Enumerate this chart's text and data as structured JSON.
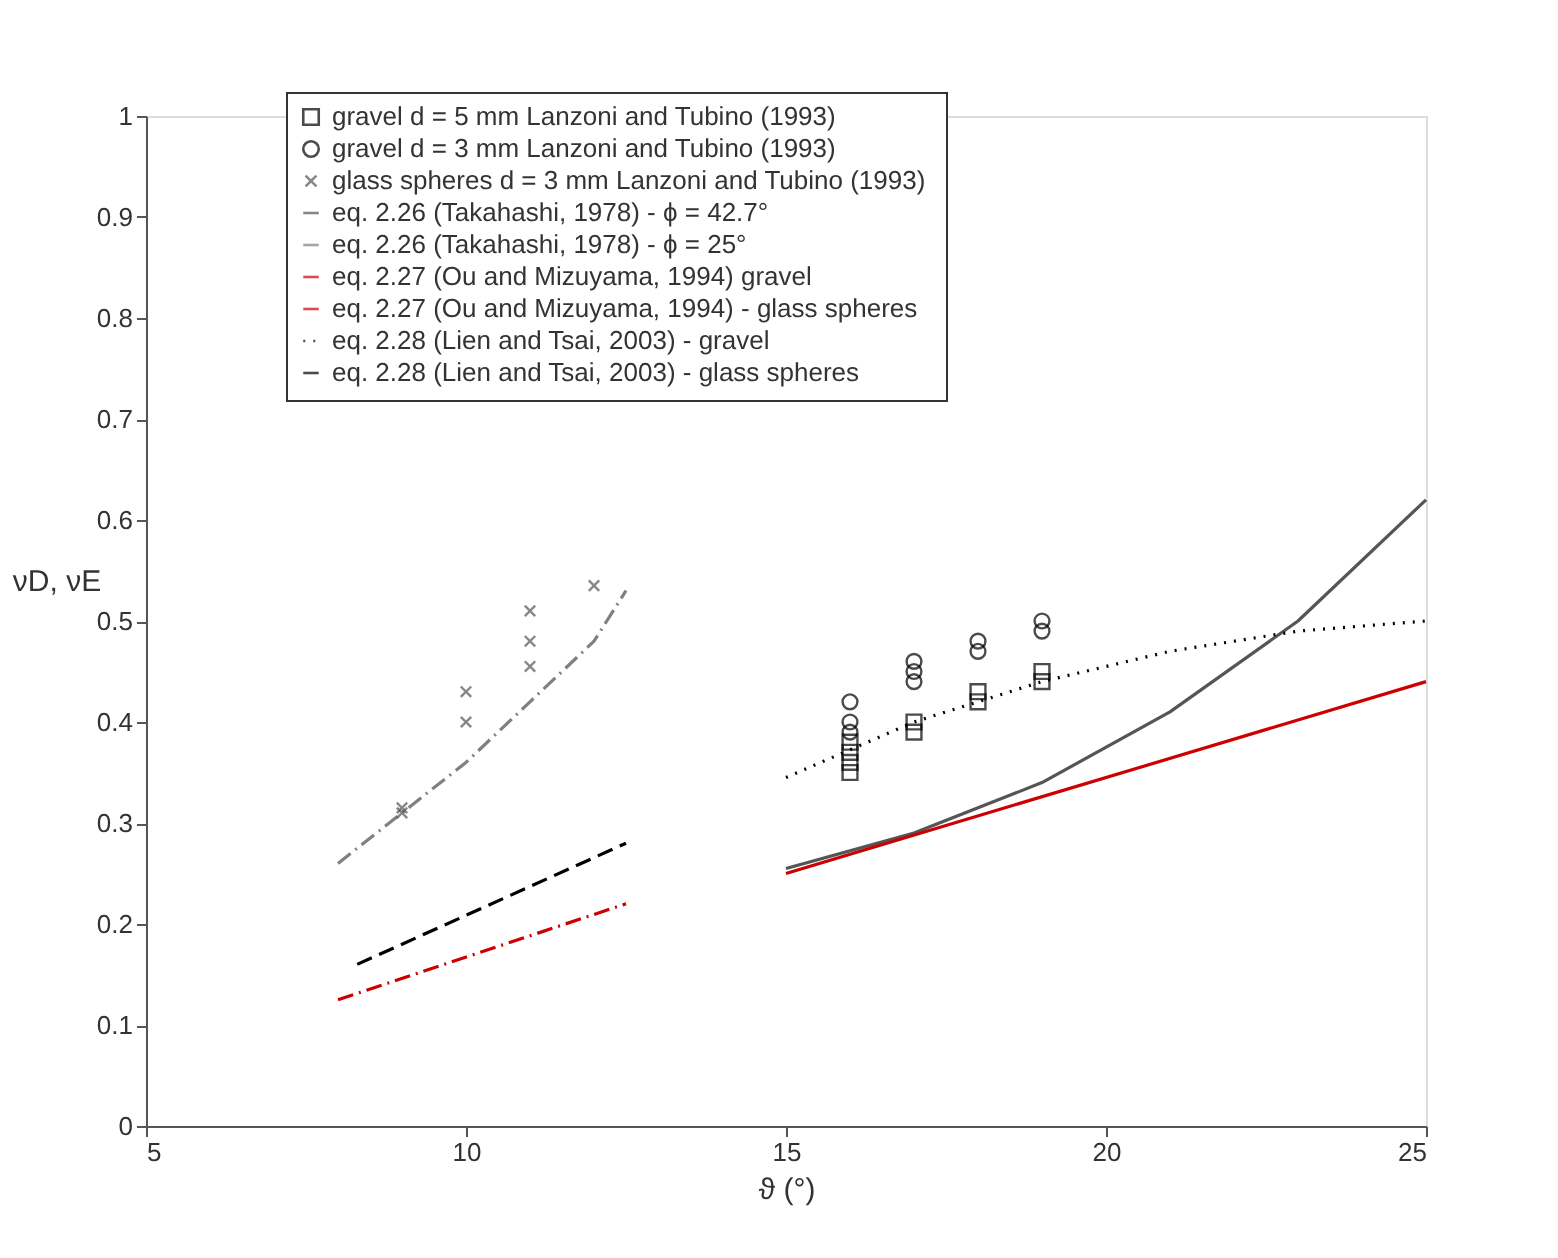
{
  "chart_data": {
    "type": "scatter",
    "xlabel": "ϑ (°)",
    "ylabel": "νD, νE",
    "xlim": [
      5,
      25
    ],
    "ylim": [
      0,
      1
    ],
    "xticks": [
      5,
      10,
      15,
      20,
      25
    ],
    "yticks": [
      0,
      0.1,
      0.2,
      0.3,
      0.4,
      0.5,
      0.6,
      0.7,
      0.8,
      0.9,
      1
    ],
    "grid": false,
    "legend": "top",
    "series": [
      {
        "name": "gravel d = 5 mm Lanzoni and Tubino (1993)",
        "marker": "square",
        "color": "#000000",
        "x": [
          16,
          16,
          16,
          16,
          17,
          17,
          18,
          18,
          19,
          19
        ],
        "values": [
          0.35,
          0.36,
          0.37,
          0.38,
          0.39,
          0.4,
          0.42,
          0.43,
          0.44,
          0.45
        ]
      },
      {
        "name": "gravel d = 3 mm  Lanzoni and Tubino (1993)",
        "marker": "circle",
        "color": "#000000",
        "x": [
          16,
          16,
          16,
          17,
          17,
          17,
          18,
          18,
          19,
          19
        ],
        "values": [
          0.39,
          0.4,
          0.42,
          0.44,
          0.45,
          0.46,
          0.47,
          0.48,
          0.49,
          0.5
        ]
      },
      {
        "name": "glass spheres d = 3 mm  Lanzoni and Tubino (1993)",
        "marker": "cross",
        "color": "#555555",
        "x": [
          9,
          9,
          10,
          10,
          11,
          11,
          11,
          12
        ],
        "values": [
          0.31,
          0.315,
          0.4,
          0.43,
          0.455,
          0.48,
          0.51,
          0.535
        ]
      },
      {
        "name": "eq. 2.26 (Takahashi, 1978) - ϕ = 42.7°",
        "type": "line",
        "line_style": "solid",
        "color": "#555555",
        "x": [
          15,
          17,
          19,
          21,
          23,
          25
        ],
        "values": [
          0.255,
          0.29,
          0.34,
          0.41,
          0.5,
          0.62
        ]
      },
      {
        "name": "eq. 2.26 (Takahashi, 1978) - ϕ = 25°",
        "type": "line",
        "line_style": "dashdot",
        "color": "#808080",
        "x": [
          8,
          9,
          10,
          11,
          12,
          12.5
        ],
        "values": [
          0.26,
          0.31,
          0.36,
          0.42,
          0.48,
          0.53
        ]
      },
      {
        "name": "eq. 2.27 (Ou and Mizuyama, 1994) gravel",
        "type": "line",
        "line_style": "solid",
        "color": "#cc0000",
        "x": [
          15,
          25
        ],
        "values": [
          0.25,
          0.44
        ]
      },
      {
        "name": "eq. 2.27 (Ou and Mizuyama, 1994) - glass spheres",
        "type": "line",
        "line_style": "dashdot",
        "color": "#cc0000",
        "x": [
          8,
          12.5
        ],
        "values": [
          0.125,
          0.22
        ]
      },
      {
        "name": "eq. 2.28 (Lien and Tsai, 2003) - gravel",
        "type": "line",
        "line_style": "dotted",
        "color": "#000000",
        "x": [
          15,
          17,
          19,
          21,
          23,
          25
        ],
        "values": [
          0.345,
          0.4,
          0.44,
          0.47,
          0.49,
          0.5
        ]
      },
      {
        "name": "eq. 2.28 (Lien and Tsai, 2003) - glass spheres",
        "type": "line",
        "line_style": "dashed",
        "color": "#000000",
        "x": [
          8.3,
          12.5
        ],
        "values": [
          0.16,
          0.28
        ]
      }
    ]
  }
}
